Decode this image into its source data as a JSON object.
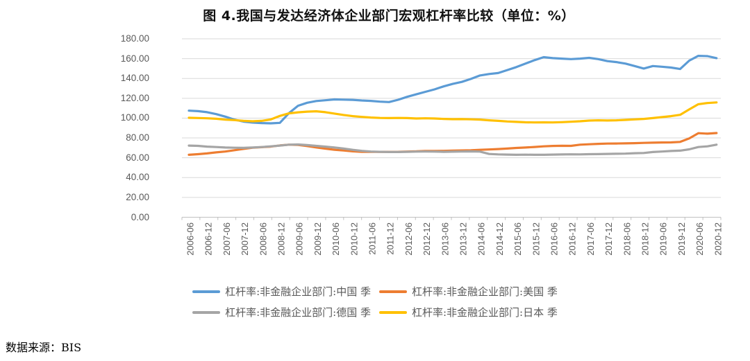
{
  "figure": {
    "title": "图 4.我国与发达经济体企业部门宏观杠杆率比较（单位：%）",
    "source_note": "数据来源：BIS"
  },
  "chart_data": {
    "type": "line",
    "title": "图 4.我国与发达经济体企业部门宏观杠杆率比较（单位：%）",
    "unit": "%",
    "grid": "horizontal",
    "legend_position": "bottom",
    "ylim": [
      0,
      180
    ],
    "y_ticks": [
      0,
      20,
      40,
      60,
      80,
      100,
      120,
      140,
      160,
      180
    ],
    "y_tick_labels": [
      "180.00",
      "160.00",
      "140.00",
      "120.00",
      "100.00",
      "80.00",
      "60.00",
      "40.00",
      "20.00",
      "0.00"
    ],
    "x_tick_labels": [
      "2006-06",
      "2006-12",
      "2007-06",
      "2007-12",
      "2008-06",
      "2008-12",
      "2009-06",
      "2009-12",
      "2010-06",
      "2010-12",
      "2011-06",
      "2011-12",
      "2012-06",
      "2012-12",
      "2013-06",
      "2013-12",
      "2014-06",
      "2014-12",
      "2015-06",
      "2015-12",
      "2016-06",
      "2016-12",
      "2017-06",
      "2017-12",
      "2018-06",
      "2018-12",
      "2019-06",
      "2019-12",
      "2020-06",
      "2020-12"
    ],
    "x": [
      "2006-06",
      "2006-09",
      "2006-12",
      "2007-03",
      "2007-06",
      "2007-09",
      "2007-12",
      "2008-03",
      "2008-06",
      "2008-09",
      "2008-12",
      "2009-03",
      "2009-06",
      "2009-09",
      "2009-12",
      "2010-03",
      "2010-06",
      "2010-09",
      "2010-12",
      "2011-03",
      "2011-06",
      "2011-09",
      "2011-12",
      "2012-03",
      "2012-06",
      "2012-09",
      "2012-12",
      "2013-03",
      "2013-06",
      "2013-09",
      "2013-12",
      "2014-03",
      "2014-06",
      "2014-09",
      "2014-12",
      "2015-03",
      "2015-06",
      "2015-09",
      "2015-12",
      "2016-03",
      "2016-06",
      "2016-09",
      "2016-12",
      "2017-03",
      "2017-06",
      "2017-09",
      "2017-12",
      "2018-03",
      "2018-06",
      "2018-09",
      "2018-12",
      "2019-03",
      "2019-06",
      "2019-09",
      "2019-12",
      "2020-03",
      "2020-06",
      "2020-09",
      "2020-12"
    ],
    "series": [
      {
        "key": "china",
        "name": "杠杆率:非金融企业部门:中国 季",
        "color": "#5B9BD5",
        "values": [
          107.5,
          107.0,
          106.0,
          104.0,
          101.5,
          98.5,
          96.5,
          95.5,
          95.0,
          94.7,
          95.2,
          105.0,
          112.5,
          115.5,
          117.2,
          118.0,
          118.8,
          118.6,
          118.4,
          117.8,
          117.4,
          116.6,
          116.2,
          118.5,
          121.5,
          124.0,
          126.5,
          129.0,
          132.0,
          134.5,
          136.5,
          139.5,
          143.0,
          144.5,
          145.5,
          148.5,
          151.5,
          155.0,
          158.5,
          161.5,
          160.5,
          160.0,
          159.5,
          160.0,
          160.8,
          159.5,
          157.5,
          156.5,
          155.0,
          152.5,
          150.0,
          152.5,
          151.8,
          151.0,
          149.5,
          158.0,
          162.8,
          162.5,
          160.5
        ]
      },
      {
        "key": "usa",
        "name": "杠杆率:非金融企业部门:美国 季",
        "color": "#ED7D31",
        "values": [
          63.0,
          63.6,
          64.4,
          65.4,
          66.3,
          67.6,
          68.9,
          70.1,
          70.7,
          71.2,
          72.4,
          73.2,
          72.9,
          71.8,
          70.4,
          69.2,
          68.1,
          67.3,
          66.5,
          66.0,
          65.9,
          66.0,
          65.9,
          66.0,
          66.3,
          66.5,
          66.9,
          66.9,
          67.0,
          67.2,
          67.4,
          67.6,
          68.0,
          68.4,
          68.8,
          69.3,
          69.9,
          70.3,
          70.9,
          71.5,
          71.9,
          72.1,
          72.0,
          73.2,
          73.6,
          74.0,
          74.3,
          74.4,
          74.5,
          74.7,
          75.0,
          75.2,
          75.4,
          75.5,
          76.0,
          79.5,
          84.8,
          84.3,
          84.9
        ]
      },
      {
        "key": "germany",
        "name": "杠杆率:非金融企业部门:德国 季",
        "color": "#A5A5A5",
        "values": [
          72.3,
          72.0,
          71.2,
          70.8,
          70.3,
          70.1,
          70.0,
          70.3,
          70.8,
          71.5,
          72.3,
          73.2,
          73.4,
          72.8,
          72.0,
          71.2,
          70.4,
          69.3,
          68.0,
          67.0,
          66.3,
          66.0,
          65.8,
          65.8,
          66.0,
          66.2,
          66.3,
          66.2,
          66.0,
          66.1,
          66.3,
          66.4,
          66.2,
          63.8,
          63.4,
          63.2,
          63.0,
          63.1,
          63.0,
          63.0,
          63.2,
          63.3,
          63.5,
          63.4,
          63.6,
          63.7,
          63.9,
          64.0,
          64.2,
          64.6,
          64.8,
          65.8,
          66.3,
          66.8,
          67.2,
          68.5,
          70.8,
          71.5,
          73.2
        ]
      },
      {
        "key": "japan",
        "name": "杠杆率:非金融企业部门:日本 季",
        "color": "#FFC000",
        "values": [
          100.3,
          100.1,
          99.8,
          99.3,
          98.5,
          98.0,
          97.2,
          96.8,
          97.2,
          98.6,
          102.2,
          104.8,
          105.8,
          106.5,
          106.9,
          106.0,
          104.6,
          103.2,
          102.0,
          101.2,
          100.6,
          100.2,
          100.0,
          100.2,
          100.0,
          99.6,
          99.8,
          99.6,
          99.2,
          98.9,
          99.0,
          98.8,
          98.5,
          97.8,
          97.2,
          96.6,
          96.2,
          95.8,
          95.6,
          95.7,
          95.6,
          95.9,
          96.3,
          96.8,
          97.5,
          97.8,
          97.6,
          97.8,
          98.2,
          98.7,
          99.2,
          100.0,
          101.0,
          102.0,
          103.3,
          108.8,
          114.0,
          115.2,
          115.8
        ]
      }
    ]
  }
}
